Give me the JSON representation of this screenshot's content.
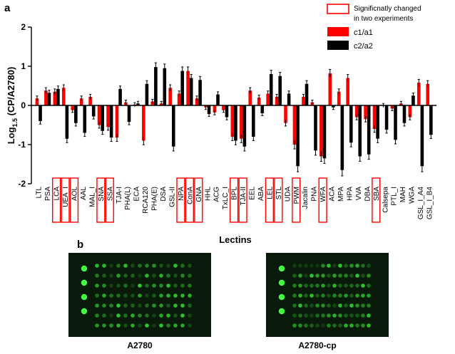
{
  "panel_a_label": "a",
  "panel_b_label": "b",
  "colors": {
    "series1": "#ff0000",
    "series2": "#000000",
    "highlight": "#ff0000",
    "array_bg": "#0a1a0a",
    "spot": "#33dd33"
  },
  "chart_data": {
    "type": "bar",
    "ylabel_main": "Log",
    "ylabel_sub": "1.5",
    "ylabel_tail": " (CP/A2780)",
    "xlabel": "Lectins",
    "ylim": [
      -2,
      2
    ],
    "yticks": [
      "2",
      "1",
      "0",
      "-1",
      "-2"
    ],
    "legend": {
      "highlight_note_line1": "Significnatly changed",
      "highlight_note_line2": "in two experiments",
      "placement": "top-right"
    },
    "categories": [
      "LTL",
      "PSA",
      "LCA",
      "UEA_I",
      "AOL",
      "AAL",
      "MAL_I",
      "SNA",
      "SSA",
      "TJA-I",
      "PHA(L)",
      "ECA",
      "RCA120",
      "PHA(E)",
      "DSA",
      "GSL-II",
      "NPA",
      "ConA",
      "GNA",
      "HHL",
      "ACG",
      "TxLC_I",
      "BPL",
      "TJA-II",
      "EEL",
      "ABA",
      "LEL",
      "STL",
      "UDA",
      "PWM",
      "Jacalin",
      "PNA",
      "WFA",
      "ACA",
      "MPA",
      "HPA",
      "VVA",
      "DBA",
      "SBA",
      "Calsepa",
      "PTL_I",
      "MAH",
      "WGA",
      "GSL_I_A4",
      "GSL_I_B4"
    ],
    "highlighted": [
      "LCA",
      "UEA_I",
      "AOL",
      "SNA",
      "SSA",
      "NPA",
      "ConA",
      "GNA",
      "BPL",
      "TJA-II",
      "LEL",
      "STL",
      "PWM",
      "WFA",
      "SBA"
    ],
    "series": [
      {
        "name": "c1/a1",
        "values": [
          0.18,
          0.38,
          0.35,
          0.45,
          -0.12,
          0.18,
          0.22,
          -0.5,
          -0.55,
          -0.82,
          0.08,
          0.02,
          -0.9,
          0.1,
          0.05,
          0.45,
          0.3,
          0.88,
          0.18,
          -0.05,
          -0.18,
          -0.12,
          -0.8,
          -0.85,
          0.38,
          0.2,
          0.3,
          0.22,
          -0.45,
          -1.0,
          0.22,
          0.08,
          -1.3,
          0.82,
          0.35,
          0.7,
          -0.3,
          -0.35,
          -0.6,
          0.0,
          -0.08,
          0.05,
          -0.3,
          0.58,
          0.55
        ]
      },
      {
        "name": "c2/a2",
        "values": [
          -0.4,
          0.32,
          0.42,
          -0.85,
          -0.45,
          -0.7,
          -0.28,
          -0.65,
          -0.82,
          0.42,
          -0.42,
          0.05,
          0.55,
          0.98,
          0.95,
          -1.05,
          0.88,
          0.7,
          0.65,
          -0.22,
          0.28,
          -0.3,
          -0.9,
          -1.05,
          -0.8,
          -0.2,
          0.8,
          0.75,
          0.3,
          -1.55,
          0.55,
          -1.15,
          -1.35,
          -0.05,
          -1.65,
          -0.95,
          -1.3,
          -1.25,
          -0.85,
          -0.62,
          -0.88,
          -0.45,
          0.25,
          -1.55,
          -0.75
        ]
      }
    ]
  },
  "arrays": [
    {
      "caption": "A2780"
    },
    {
      "caption": "A2780-cp"
    }
  ]
}
